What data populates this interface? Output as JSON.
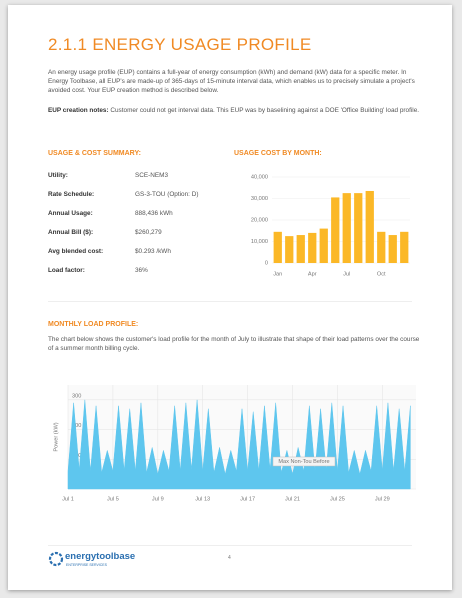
{
  "header": {
    "title": "2.1.1 ENERGY USAGE PROFILE"
  },
  "intro": "An energy usage profile (EUP) contains a full-year of energy consumption (kWh) and demand (kW) data for a specific meter. In Energy Toolbase, all EUP's are made-up of 365-days of 15-minute interval data, which enables us to precisely simulate a project's avoided cost. Your EUP creation method is described below.",
  "notes": {
    "label": "EUP creation notes:",
    "text": "Customer could not get interval data. This EUP was by baselining against a DOE 'Office Building' load profile."
  },
  "summary": {
    "heading": "USAGE & COST SUMMARY:",
    "rows": [
      [
        "Utility:",
        "SCE-NEM3"
      ],
      [
        "Rate Schedule:",
        "GS-3-TOU (Option: D)"
      ],
      [
        "Annual Usage:",
        "888,436 kWh"
      ],
      [
        "Annual Bill ($):",
        "$260,279"
      ],
      [
        "Avg blended cost:",
        "$0.293 /kWh"
      ],
      [
        "Load factor:",
        "36%"
      ]
    ]
  },
  "load_profile": {
    "heading": "MONTHLY LOAD PROFILE:",
    "text": "The chart below shows the customer's load profile for the month of July to illustrate that shape of their load patterns over the course of a summer month billing cycle."
  },
  "footer": {
    "logo": "energytoolbase",
    "tagline": "ENTERPRISE SERVICES",
    "page": "4"
  },
  "chart_data": [
    {
      "type": "bar",
      "title": "USAGE COST BY MONTH:",
      "categories": [
        "Jan",
        null,
        null,
        "Apr",
        null,
        null,
        "Jul",
        null,
        null,
        "Oct",
        null,
        null
      ],
      "values": [
        14500,
        12500,
        13000,
        14000,
        16000,
        30500,
        32500,
        32500,
        33500,
        14500,
        13000,
        14500
      ],
      "color": "#fbb827",
      "ylim": [
        0,
        40000
      ],
      "yticks": [
        0,
        {
          "value": 10000,
          "label": "10,000"
        },
        {
          "value": 20000,
          "label": "20,000"
        },
        {
          "value": 30000,
          "label": "30,000"
        },
        {
          "value": 40000,
          "label": "40,000"
        }
      ],
      "grid": true
    },
    {
      "type": "area",
      "ylabel": "Power (kW)",
      "annotation": "Max Non-Tou Before",
      "color": "#5ec6ee",
      "x": [
        1,
        1.5,
        2,
        2.5,
        3,
        3.5,
        4,
        4.5,
        5,
        5.5,
        6,
        6.5,
        7,
        7.5,
        8,
        8.5,
        9,
        9.5,
        10,
        10.5,
        11,
        11.5,
        12,
        12.5,
        13,
        13.5,
        14,
        14.5,
        15,
        15.5,
        16,
        16.5,
        17,
        17.5,
        18,
        18.5,
        19,
        19.5,
        20,
        20.5,
        21,
        21.5,
        22,
        22.5,
        23,
        23.5,
        24,
        24.5,
        25,
        25.5,
        26,
        26.5,
        27,
        27.5,
        28,
        28.5,
        29,
        29.5,
        30,
        30.5,
        31,
        31.5
      ],
      "values": [
        60,
        290,
        65,
        300,
        60,
        280,
        55,
        130,
        60,
        280,
        62,
        270,
        60,
        290,
        55,
        140,
        50,
        130,
        60,
        280,
        62,
        290,
        65,
        300,
        60,
        270,
        55,
        140,
        50,
        130,
        60,
        270,
        60,
        260,
        62,
        280,
        65,
        290,
        55,
        130,
        50,
        140,
        60,
        280,
        62,
        270,
        65,
        290,
        60,
        280,
        55,
        130,
        50,
        130,
        60,
        280,
        62,
        290,
        60,
        270,
        60,
        280
      ],
      "xlim": [
        1,
        32
      ],
      "xticks": [
        {
          "value": 1,
          "label": "Jul 1"
        },
        {
          "value": 5,
          "label": "Jul 5"
        },
        {
          "value": 9,
          "label": "Jul 9"
        },
        {
          "value": 13,
          "label": "Jul 13"
        },
        {
          "value": 17,
          "label": "Jul 17"
        },
        {
          "value": 21,
          "label": "Jul 21"
        },
        {
          "value": 25,
          "label": "Jul 25"
        },
        {
          "value": 29,
          "label": "Jul 29"
        }
      ],
      "ylim": [
        0,
        350
      ],
      "yticks": [
        0,
        100,
        200,
        300
      ],
      "grid": true
    }
  ]
}
